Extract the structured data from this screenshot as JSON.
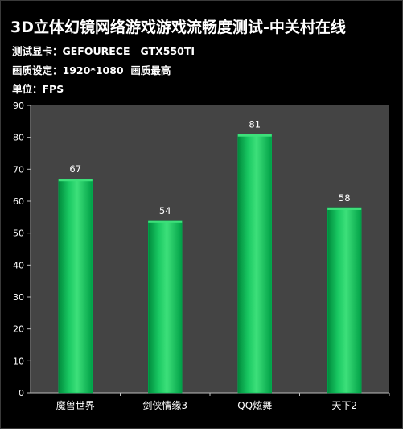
{
  "header": {
    "title": "3D立体幻镜网络游戏游戏流畅度测试-中关村在线",
    "line1": "测试显卡：GEFOURECE   GTX550TI",
    "line2": "画质设定：1920*1080  画质最高",
    "line3": "单位：FPS"
  },
  "colors": {
    "background": "#000000",
    "plot_area": "#444444",
    "bar": "#00b050",
    "bar_highlight": "#3de07a",
    "text": "#ffffff"
  },
  "chart_data": {
    "type": "bar",
    "categories": [
      "魔兽世界",
      "剑侠情缘3",
      "QQ炫舞",
      "天下2"
    ],
    "values": [
      67,
      54,
      81,
      58
    ],
    "data_labels": [
      "67",
      "54",
      "81",
      "58"
    ],
    "ylim": [
      0,
      90
    ],
    "yticks": [
      "0",
      "10",
      "20",
      "30",
      "40",
      "50",
      "60",
      "70",
      "80",
      "90"
    ],
    "xlabel": "",
    "ylabel": "",
    "grid": false,
    "legend": "none"
  }
}
